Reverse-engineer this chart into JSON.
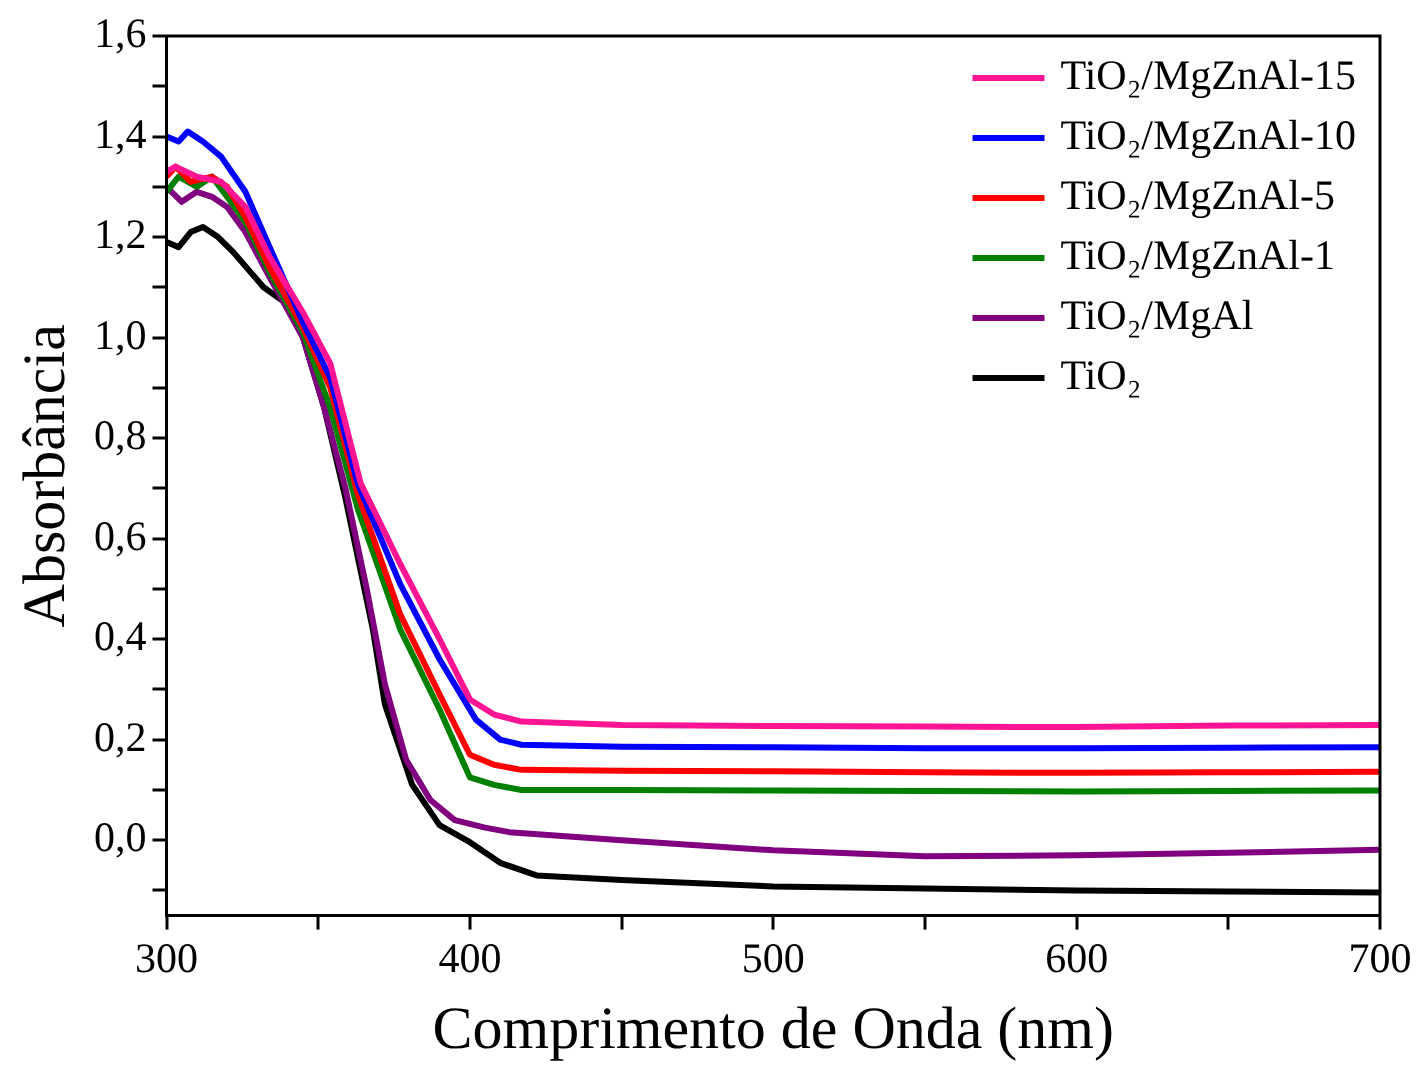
{
  "chart_data": {
    "type": "line",
    "xlabel": "Comprimento de Onda (nm)",
    "ylabel": "Absorbância",
    "xlim": [
      300,
      700
    ],
    "ylim": [
      -0.15,
      1.6
    ],
    "xticks": [
      300,
      {
        "value": 350,
        "label": null
      },
      400,
      {
        "value": 450,
        "label": null
      },
      500,
      {
        "value": 550,
        "label": null
      },
      600,
      {
        "value": 650,
        "label": null
      },
      700
    ],
    "yticks": [
      {
        "value": -0.1,
        "label": null
      },
      {
        "value": 0,
        "label": "0,0"
      },
      {
        "value": 0.1,
        "label": null
      },
      {
        "value": 0.2,
        "label": "0,2"
      },
      {
        "value": 0.3,
        "label": null
      },
      {
        "value": 0.4,
        "label": "0,4"
      },
      {
        "value": 0.5,
        "label": null
      },
      {
        "value": 0.6,
        "label": "0,6"
      },
      {
        "value": 0.7,
        "label": null
      },
      {
        "value": 0.8,
        "label": "0,8"
      },
      {
        "value": 0.9,
        "label": null
      },
      {
        "value": 1.0,
        "label": "1,0"
      },
      {
        "value": 1.1,
        "label": null
      },
      {
        "value": 1.2,
        "label": "1,2"
      },
      {
        "value": 1.3,
        "label": null
      },
      {
        "value": 1.4,
        "label": "1,4"
      },
      {
        "value": 1.5,
        "label": null
      },
      {
        "value": 1.6,
        "label": "1,6"
      }
    ],
    "grid": false,
    "legend": "top right",
    "marker": "none",
    "line_style": "solid",
    "series": [
      {
        "name": "TiO₂/MgZnAl-15",
        "color": "#ff1493",
        "x": [
          300,
          303,
          310,
          318,
          326,
          334,
          345,
          354,
          364,
          377,
          390,
          400,
          408,
          417,
          450,
          500,
          550,
          600,
          650,
          700
        ],
        "values": [
          1.33,
          1.34,
          1.32,
          1.31,
          1.26,
          1.16,
          1.05,
          0.948,
          0.71,
          0.55,
          0.4,
          0.28,
          0.25,
          0.236,
          0.229,
          0.227,
          0.226,
          0.225,
          0.228,
          0.229
        ]
      },
      {
        "name": "TiO₂/MgZnAl-10",
        "color": "#0000ff",
        "x": [
          300,
          304,
          307,
          312,
          318,
          326,
          334,
          345,
          354,
          363,
          377,
          390,
          402,
          410,
          417,
          450,
          500,
          550,
          600,
          650,
          700
        ],
        "values": [
          1.4,
          1.39,
          1.41,
          1.39,
          1.36,
          1.29,
          1.18,
          1.03,
          0.92,
          0.71,
          0.51,
          0.36,
          0.24,
          0.2,
          0.19,
          0.186,
          0.185,
          0.183,
          0.183,
          0.184,
          0.185
        ]
      },
      {
        "name": "TiO₂/MgZnAl-5",
        "color": "#ff0000",
        "x": [
          300,
          303,
          308,
          315,
          320,
          326,
          334,
          345,
          354,
          363,
          377,
          390,
          400,
          408,
          417,
          450,
          500,
          550,
          600,
          650,
          700
        ],
        "values": [
          1.32,
          1.34,
          1.31,
          1.32,
          1.3,
          1.24,
          1.14,
          1.02,
          0.9,
          0.69,
          0.45,
          0.29,
          0.17,
          0.15,
          0.14,
          0.138,
          0.137,
          0.135,
          0.134,
          0.135,
          0.136
        ]
      },
      {
        "name": "TiO₂/MgZnAl-1",
        "color": "#008000",
        "x": [
          300,
          304,
          310,
          315,
          320,
          326,
          334,
          345,
          354,
          363,
          377,
          390,
          400,
          408,
          417,
          450,
          500,
          550,
          600,
          650,
          700
        ],
        "values": [
          1.29,
          1.32,
          1.3,
          1.32,
          1.28,
          1.23,
          1.13,
          1.01,
          0.86,
          0.66,
          0.42,
          0.26,
          0.125,
          0.11,
          0.1,
          0.1,
          0.099,
          0.098,
          0.097,
          0.098,
          0.099
        ]
      },
      {
        "name": "TiO₂/MgAl",
        "color": "#800080",
        "x": [
          300,
          305,
          310,
          315,
          320,
          326,
          334,
          345,
          352,
          359,
          366,
          372,
          379,
          387,
          395,
          405,
          413,
          450,
          500,
          550,
          600,
          650,
          700
        ],
        "values": [
          1.3,
          1.27,
          1.29,
          1.28,
          1.26,
          1.21,
          1.12,
          1.0,
          0.86,
          0.7,
          0.5,
          0.31,
          0.16,
          0.08,
          0.04,
          0.025,
          0.016,
          0.0,
          -0.02,
          -0.032,
          -0.03,
          -0.025,
          -0.019
        ]
      },
      {
        "name": "TiO₂",
        "color": "#000000",
        "x": [
          300,
          304,
          308,
          312,
          317,
          322,
          332,
          339,
          345,
          352,
          359,
          368,
          372,
          381,
          390,
          400,
          410,
          422,
          450,
          500,
          550,
          600,
          650,
          700
        ],
        "values": [
          1.19,
          1.18,
          1.21,
          1.22,
          1.2,
          1.17,
          1.1,
          1.07,
          1.0,
          0.86,
          0.68,
          0.42,
          0.27,
          0.11,
          0.03,
          -0.004,
          -0.045,
          -0.07,
          -0.079,
          -0.092,
          -0.096,
          -0.1,
          -0.102,
          -0.104
        ]
      }
    ]
  }
}
